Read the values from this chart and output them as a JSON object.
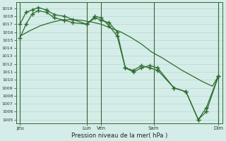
{
  "bg_color": "#d4ede8",
  "line_color": "#2d6a2d",
  "grid_color": "#b8d8d0",
  "xlabel": "Pression niveau de la mer( hPa )",
  "ylim": [
    1004.5,
    1019.8
  ],
  "yticks": [
    1005,
    1006,
    1007,
    1008,
    1009,
    1010,
    1011,
    1012,
    1013,
    1014,
    1015,
    1016,
    1017,
    1018,
    1019
  ],
  "xtick_positions": [
    0,
    33,
    40,
    66,
    98
  ],
  "xtick_labels": [
    "Jeu",
    "Lun",
    "Ven",
    "Sam",
    "Dim"
  ],
  "line_smooth_x": [
    0,
    5,
    10,
    15,
    20,
    25,
    30,
    35,
    40,
    45,
    50,
    55,
    60,
    65,
    70,
    75,
    80,
    85,
    90,
    95,
    98
  ],
  "line_smooth_y": [
    1015.5,
    1016.2,
    1016.8,
    1017.2,
    1017.5,
    1017.6,
    1017.5,
    1017.3,
    1017.0,
    1016.5,
    1016.0,
    1015.3,
    1014.5,
    1013.5,
    1012.8,
    1012.0,
    1011.2,
    1010.5,
    1009.8,
    1009.2,
    1010.5
  ],
  "line1_x": [
    0,
    3,
    6,
    9,
    13,
    17,
    22,
    26,
    33,
    37,
    40,
    44,
    48,
    52,
    56,
    60,
    64,
    68,
    76,
    82,
    88,
    92,
    98
  ],
  "line1_y": [
    1017.0,
    1018.5,
    1018.8,
    1019.1,
    1018.8,
    1018.2,
    1018.0,
    1017.6,
    1017.0,
    1018.0,
    1017.8,
    1016.8,
    1015.5,
    1011.5,
    1011.2,
    1011.8,
    1011.5,
    1011.2,
    1009.0,
    1008.5,
    1005.0,
    1006.0,
    1010.5
  ],
  "line2_x": [
    0,
    3,
    6,
    9,
    13,
    17,
    22,
    26,
    33,
    37,
    40,
    44,
    48,
    52,
    56,
    60,
    64,
    68,
    76,
    82,
    88,
    92,
    98
  ],
  "line2_y": [
    1015.3,
    1017.0,
    1018.3,
    1018.7,
    1018.5,
    1017.8,
    1017.5,
    1017.2,
    1017.0,
    1017.8,
    1017.5,
    1017.2,
    1016.0,
    1011.5,
    1011.0,
    1011.5,
    1011.8,
    1011.5,
    1009.0,
    1008.5,
    1005.0,
    1006.5,
    1010.5
  ]
}
